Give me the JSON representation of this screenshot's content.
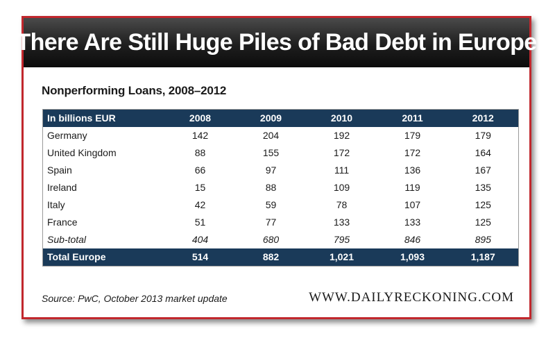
{
  "header": {
    "title": "There Are Still Huge Piles of Bad Debt in Europe"
  },
  "chart_data": {
    "type": "table",
    "title": "Nonperforming Loans, 2008–2012",
    "unit_label": "In billions EUR",
    "columns": [
      "2008",
      "2009",
      "2010",
      "2011",
      "2012"
    ],
    "rows": [
      {
        "label": "Germany",
        "values": [
          "142",
          "204",
          "192",
          "179",
          "179"
        ]
      },
      {
        "label": "United Kingdom",
        "values": [
          "88",
          "155",
          "172",
          "172",
          "164"
        ]
      },
      {
        "label": "Spain",
        "values": [
          "66",
          "97",
          "111",
          "136",
          "167"
        ]
      },
      {
        "label": "Ireland",
        "values": [
          "15",
          "88",
          "109",
          "119",
          "135"
        ]
      },
      {
        "label": "Italy",
        "values": [
          "42",
          "59",
          "78",
          "107",
          "125"
        ]
      },
      {
        "label": "France",
        "values": [
          "51",
          "77",
          "133",
          "133",
          "125"
        ]
      }
    ],
    "subtotal": {
      "label": "Sub-total",
      "values": [
        "404",
        "680",
        "795",
        "846",
        "895"
      ]
    },
    "total": {
      "label": "Total Europe",
      "values": [
        "514",
        "882",
        "1,021",
        "1,093",
        "1,187"
      ]
    }
  },
  "footer": {
    "source": "Source: PwC, October 2013 market update",
    "brand": "WWW.DAILYRECKONING.COM"
  },
  "colors": {
    "frame_border": "#c1272d",
    "table_header": "#1a3a59",
    "title_bar": "#1e1e1e"
  }
}
